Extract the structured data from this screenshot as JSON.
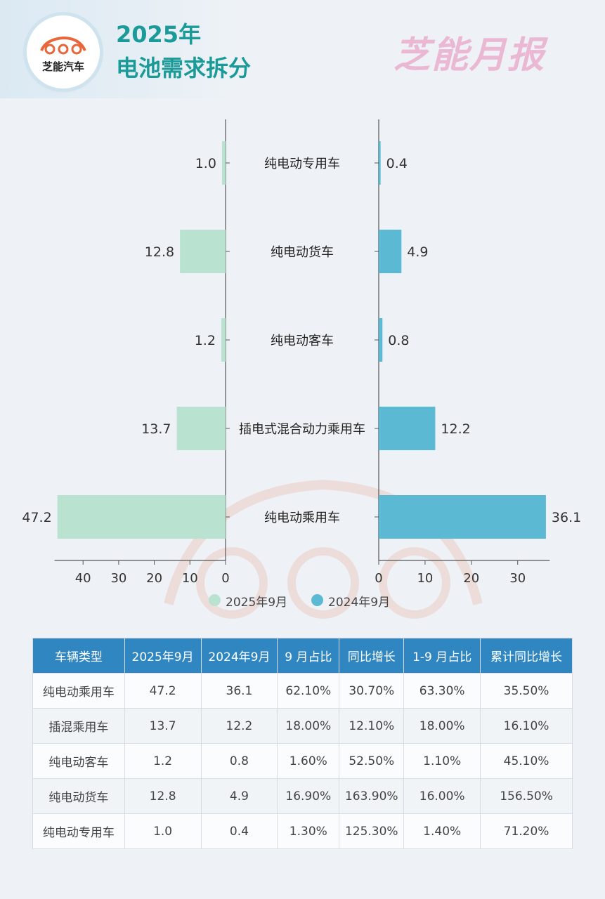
{
  "header": {
    "logo_text": "芝能汽车",
    "title_year": "2025年",
    "title_sub": "电池需求拆分",
    "brand": "芝能月报"
  },
  "colors": {
    "series_2025": "#b9e3d0",
    "series_2024": "#5bb9d4",
    "title": "#1a9a98",
    "table_header": "#2f86c1"
  },
  "chart_data": {
    "type": "bar",
    "orientation": "horizontal-butterfly",
    "categories": [
      "纯电动专用车",
      "纯电动货车",
      "纯电动客车",
      "插电式混合动力乘用车",
      "纯电动乘用车"
    ],
    "series": [
      {
        "name": "2025年9月",
        "values": [
          1.0,
          12.8,
          1.2,
          13.7,
          47.2
        ]
      },
      {
        "name": "2024年9月",
        "values": [
          0.4,
          4.9,
          0.8,
          12.2,
          36.1
        ]
      }
    ],
    "left_ticks": [
      40,
      30,
      20,
      10,
      0
    ],
    "right_ticks": [
      0,
      10,
      20,
      30
    ],
    "xlim": [
      0,
      47.2
    ],
    "legend_position": "bottom"
  },
  "table": {
    "headers": [
      "车辆类型",
      "2025年9月",
      "2024年9月",
      "9 月占比",
      "同比增长",
      "1-9 月占比",
      "累计同比增长"
    ],
    "rows": [
      [
        "纯电动乘用车",
        "47.2",
        "36.1",
        "62.10%",
        "30.70%",
        "63.30%",
        "35.50%"
      ],
      [
        "插混乘用车",
        "13.7",
        "12.2",
        "18.00%",
        "12.10%",
        "18.00%",
        "16.10%"
      ],
      [
        "纯电动客车",
        "1.2",
        "0.8",
        "1.60%",
        "52.50%",
        "1.10%",
        "45.10%"
      ],
      [
        "纯电动货车",
        "12.8",
        "4.9",
        "16.90%",
        "163.90%",
        "16.00%",
        "156.50%"
      ],
      [
        "纯电动专用车",
        "1.0",
        "0.4",
        "1.30%",
        "125.30%",
        "1.40%",
        "71.20%"
      ]
    ]
  }
}
